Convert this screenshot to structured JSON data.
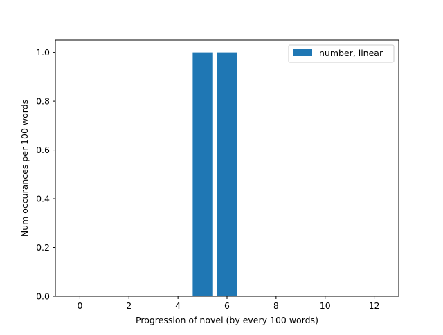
{
  "chart_data": {
    "type": "bar",
    "title": "",
    "xlabel": "Progression of novel (by every 100 words)",
    "ylabel": "Num occurances per 100 words",
    "xlim": [
      -1.0,
      13.0
    ],
    "ylim": [
      0.0,
      1.05
    ],
    "x_ticks": [
      0,
      2,
      4,
      6,
      8,
      10,
      12
    ],
    "y_ticks": [
      0.0,
      0.2,
      0.4,
      0.6,
      0.8,
      1.0
    ],
    "x_tick_labels": [
      "0",
      "2",
      "4",
      "6",
      "8",
      "10",
      "12"
    ],
    "y_tick_labels": [
      "0.0",
      "0.2",
      "0.4",
      "0.6",
      "0.8",
      "1.0"
    ],
    "series": [
      {
        "name": "number, linear",
        "color": "#1f77b4",
        "x": [
          0,
          1,
          2,
          3,
          4,
          5,
          6,
          7,
          8,
          9,
          10,
          11,
          12
        ],
        "values": [
          0,
          0,
          0,
          0,
          0,
          1,
          1,
          0,
          0,
          0,
          0,
          0,
          0
        ]
      }
    ],
    "bar_width": 0.8,
    "grid": false,
    "legend_position": "upper right"
  }
}
